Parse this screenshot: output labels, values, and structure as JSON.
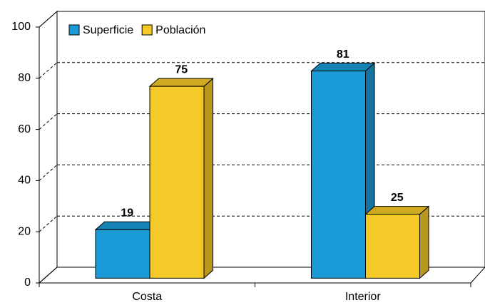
{
  "chart_data": {
    "type": "bar3d",
    "categories": [
      "Costa",
      "Interior"
    ],
    "series": [
      {
        "name": "Superficie",
        "color": "#1a9ad6",
        "values": [
          19,
          81
        ]
      },
      {
        "name": "Población",
        "color": "#f5c928",
        "values": [
          75,
          25
        ]
      }
    ],
    "ylim": [
      0,
      100
    ],
    "yticks": [
      0,
      20,
      40,
      60,
      80,
      100
    ],
    "grid": true,
    "legend": "top-left"
  }
}
